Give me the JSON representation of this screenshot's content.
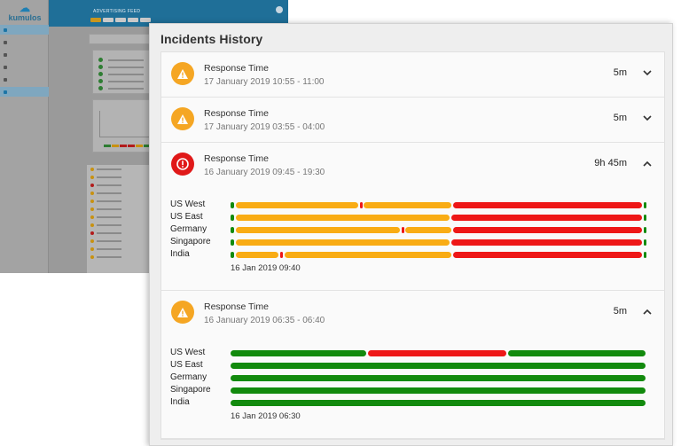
{
  "background_app": {
    "logo": "kumulos",
    "header_title": "ADVERTISING FEED"
  },
  "panel": {
    "title": "Incidents History"
  },
  "colors": {
    "warning": "#f5a623",
    "critical": "#e01919",
    "bar_warning": "#f9ac14",
    "bar_critical": "#ee1717",
    "bar_ok": "#128a0d"
  },
  "incidents": [
    {
      "severity": "warning",
      "icon": "warning-icon",
      "title": "Response Time",
      "time_range": "17 January 2019 10:55 - 11:00",
      "duration": "5m",
      "chevron": "chevron-down-icon",
      "expanded": false
    },
    {
      "severity": "warning",
      "icon": "warning-icon",
      "title": "Response Time",
      "time_range": "17 January 2019 03:55 - 04:00",
      "duration": "5m",
      "chevron": "chevron-down-icon",
      "expanded": false
    },
    {
      "severity": "critical",
      "icon": "alert-circle-icon",
      "title": "Response Time",
      "time_range": "16 January 2019 09:45 - 19:30",
      "duration": "9h 45m",
      "chevron": "chevron-up-icon",
      "expanded": true,
      "start_label": "16 Jan 2019 09:40",
      "regions": [
        {
          "name": "US West",
          "segments": [
            [
              "ok",
              0,
              0.012
            ],
            [
              "warning",
              0.012,
              0.31
            ],
            [
              "critical",
              0.31,
              0.32
            ],
            [
              "warning",
              0.32,
              0.535
            ],
            [
              "critical",
              0.535,
              0.992
            ],
            [
              "ok",
              0.992,
              1
            ]
          ]
        },
        {
          "name": "US East",
          "segments": [
            [
              "ok",
              0,
              0.012
            ],
            [
              "warning",
              0.012,
              0.53
            ],
            [
              "critical",
              0.53,
              0.992
            ],
            [
              "ok",
              0.992,
              1
            ]
          ]
        },
        {
          "name": "Germany",
          "segments": [
            [
              "ok",
              0,
              0.012
            ],
            [
              "warning",
              0.012,
              0.41
            ],
            [
              "critical",
              0.41,
              0.42
            ],
            [
              "warning",
              0.42,
              0.535
            ],
            [
              "critical",
              0.535,
              0.992
            ],
            [
              "ok",
              0.992,
              1
            ]
          ]
        },
        {
          "name": "Singapore",
          "segments": [
            [
              "ok",
              0,
              0.012
            ],
            [
              "warning",
              0.012,
              0.53
            ],
            [
              "critical",
              0.53,
              0.992
            ],
            [
              "ok",
              0.992,
              1
            ]
          ]
        },
        {
          "name": "India",
          "segments": [
            [
              "ok",
              0,
              0.012
            ],
            [
              "warning",
              0.012,
              0.12
            ],
            [
              "critical",
              0.12,
              0.13
            ],
            [
              "warning",
              0.13,
              0.535
            ],
            [
              "critical",
              0.535,
              0.992
            ],
            [
              "ok",
              0.992,
              1
            ]
          ]
        }
      ]
    },
    {
      "severity": "warning",
      "icon": "warning-icon",
      "title": "Response Time",
      "time_range": "16 January 2019 06:35 - 06:40",
      "duration": "5m",
      "chevron": "chevron-up-icon",
      "expanded": true,
      "start_label": "16 Jan 2019 06:30",
      "regions": [
        {
          "name": "US West",
          "segments": [
            [
              "ok",
              0,
              0.33
            ],
            [
              "critical",
              0.33,
              0.665
            ],
            [
              "ok",
              0.665,
              1
            ]
          ]
        },
        {
          "name": "US East",
          "segments": [
            [
              "ok",
              0,
              1
            ]
          ]
        },
        {
          "name": "Germany",
          "segments": [
            [
              "ok",
              0,
              1
            ]
          ]
        },
        {
          "name": "Singapore",
          "segments": [
            [
              "ok",
              0,
              1
            ]
          ]
        },
        {
          "name": "India",
          "segments": [
            [
              "ok",
              0,
              1
            ]
          ]
        }
      ]
    }
  ]
}
